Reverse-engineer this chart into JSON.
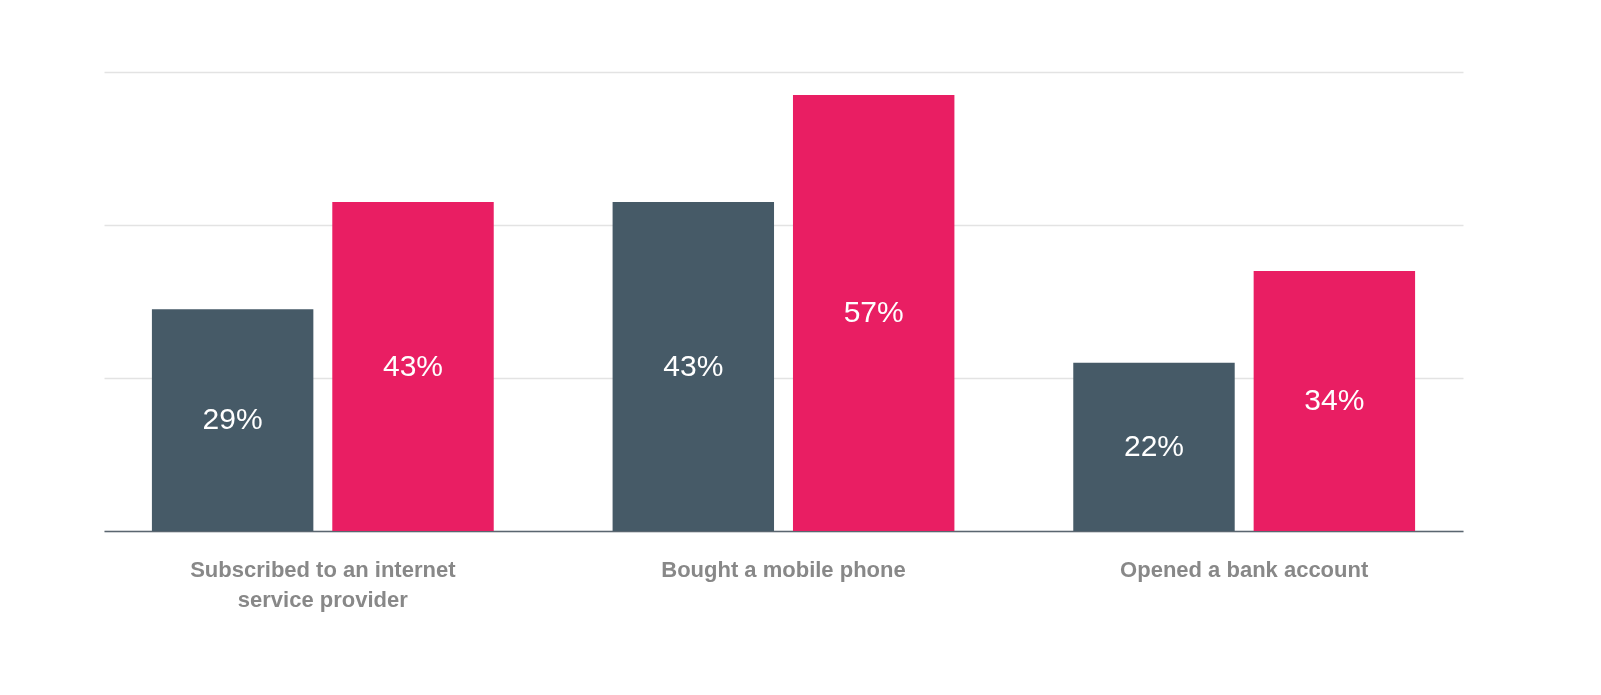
{
  "chart_data": {
    "type": "bar",
    "categories": [
      "Subscribed to an internet service provider",
      "Bought a mobile phone",
      "Opened a bank account"
    ],
    "series": [
      {
        "color": "#465a67",
        "values": [
          29,
          43,
          22
        ],
        "value_labels": [
          "29%",
          "43%",
          "22%"
        ]
      },
      {
        "color": "#e91e63",
        "values": [
          43,
          57,
          34
        ],
        "value_labels": [
          "43%",
          "57%",
          "34%"
        ]
      }
    ],
    "ylim": [
      0,
      60
    ],
    "yticks": [
      {
        "value": 0,
        "label": null
      },
      {
        "value": 20,
        "label": null
      },
      {
        "value": 40,
        "label": null
      },
      {
        "value": 60,
        "label": null
      }
    ],
    "tick_labels": "x",
    "grid": "y",
    "legend": false
  }
}
